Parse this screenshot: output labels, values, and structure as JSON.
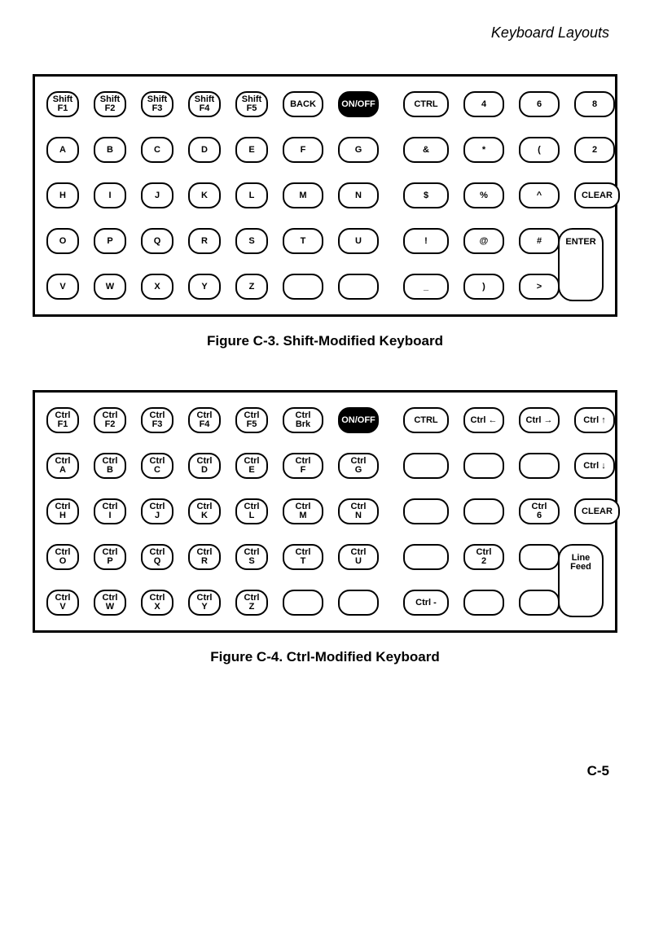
{
  "header": {
    "title": "Keyboard Layouts"
  },
  "figure1": {
    "caption": "Figure C-3.  Shift-Modified Keyboard",
    "rows": [
      {
        "left": [
          {
            "l1": "Shift",
            "l2": "F1",
            "w": "w1"
          },
          {
            "l1": "Shift",
            "l2": "F2",
            "w": "w1"
          },
          {
            "l1": "Shift",
            "l2": "F3",
            "w": "w1"
          },
          {
            "l1": "Shift",
            "l2": "F4",
            "w": "w1"
          },
          {
            "l1": "Shift",
            "l2": "F5",
            "w": "w1"
          },
          {
            "l1": "BACK",
            "w": "w2"
          },
          {
            "l1": "ON/OFF",
            "w": "w2",
            "inv": true
          }
        ],
        "right": [
          {
            "l1": "CTRL",
            "w": "w3"
          },
          {
            "l1": "4",
            "w": "w2"
          },
          {
            "l1": "6",
            "w": "w2"
          },
          {
            "l1": "8",
            "w": "w2"
          }
        ]
      },
      {
        "left": [
          {
            "l1": "A",
            "w": "w1"
          },
          {
            "l1": "B",
            "w": "w1"
          },
          {
            "l1": "C",
            "w": "w1"
          },
          {
            "l1": "D",
            "w": "w1"
          },
          {
            "l1": "E",
            "w": "w1"
          },
          {
            "l1": "F",
            "w": "w2"
          },
          {
            "l1": "G",
            "w": "w2"
          }
        ],
        "right": [
          {
            "l1": "&",
            "w": "w3"
          },
          {
            "l1": "*",
            "w": "w2"
          },
          {
            "l1": "(",
            "w": "w2"
          },
          {
            "l1": "2",
            "w": "w2"
          }
        ]
      },
      {
        "left": [
          {
            "l1": "H",
            "w": "w1"
          },
          {
            "l1": "I",
            "w": "w1"
          },
          {
            "l1": "J",
            "w": "w1"
          },
          {
            "l1": "K",
            "w": "w1"
          },
          {
            "l1": "L",
            "w": "w1"
          },
          {
            "l1": "M",
            "w": "w2"
          },
          {
            "l1": "N",
            "w": "w2"
          }
        ],
        "right": [
          {
            "l1": "$",
            "w": "w3"
          },
          {
            "l1": "%",
            "w": "w2"
          },
          {
            "l1": "^",
            "w": "w2"
          },
          {
            "l1": "CLEAR",
            "w": "w3"
          }
        ]
      },
      {
        "left": [
          {
            "l1": "O",
            "w": "w1"
          },
          {
            "l1": "P",
            "w": "w1"
          },
          {
            "l1": "Q",
            "w": "w1"
          },
          {
            "l1": "R",
            "w": "w1"
          },
          {
            "l1": "S",
            "w": "w1"
          },
          {
            "l1": "T",
            "w": "w2"
          },
          {
            "l1": "U",
            "w": "w2"
          }
        ],
        "right": [
          {
            "l1": "!",
            "w": "w3"
          },
          {
            "l1": "@",
            "w": "w2"
          },
          {
            "l1": "#",
            "w": "w2"
          }
        ],
        "tall": {
          "l1": "ENTER",
          "w": "w3"
        }
      },
      {
        "left": [
          {
            "l1": "V",
            "w": "w1"
          },
          {
            "l1": "W",
            "w": "w1"
          },
          {
            "l1": "X",
            "w": "w1"
          },
          {
            "l1": "Y",
            "w": "w1"
          },
          {
            "l1": "Z",
            "w": "w1"
          },
          {
            "blank": true,
            "w": "w2"
          },
          {
            "blank": true,
            "w": "w2"
          }
        ],
        "right": [
          {
            "l1": "_",
            "w": "w3"
          },
          {
            "l1": ")",
            "w": "w2"
          },
          {
            "l1": ">",
            "w": "w2"
          }
        ]
      }
    ]
  },
  "figure2": {
    "caption": "Figure C-4.  Ctrl-Modified Keyboard",
    "rows": [
      {
        "left": [
          {
            "l1": "Ctrl",
            "l2": "F1",
            "w": "w1"
          },
          {
            "l1": "Ctrl",
            "l2": "F2",
            "w": "w1"
          },
          {
            "l1": "Ctrl",
            "l2": "F3",
            "w": "w1"
          },
          {
            "l1": "Ctrl",
            "l2": "F4",
            "w": "w1"
          },
          {
            "l1": "Ctrl",
            "l2": "F5",
            "w": "w1"
          },
          {
            "l1": "Ctrl",
            "l2": "Brk",
            "w": "w2"
          },
          {
            "l1": "ON/OFF",
            "w": "w2",
            "inv": true
          }
        ],
        "right": [
          {
            "l1": "CTRL",
            "w": "w3"
          },
          {
            "l1": "Ctrl ←",
            "w": "w2"
          },
          {
            "l1": "Ctrl →",
            "w": "w2"
          },
          {
            "l1": "Ctrl ↑",
            "w": "w2"
          }
        ]
      },
      {
        "left": [
          {
            "l1": "Ctrl",
            "l2": "A",
            "w": "w1"
          },
          {
            "l1": "Ctrl",
            "l2": "B",
            "w": "w1"
          },
          {
            "l1": "Ctrl",
            "l2": "C",
            "w": "w1"
          },
          {
            "l1": "Ctrl",
            "l2": "D",
            "w": "w1"
          },
          {
            "l1": "Ctrl",
            "l2": "E",
            "w": "w1"
          },
          {
            "l1": "Ctrl",
            "l2": "F",
            "w": "w2"
          },
          {
            "l1": "Ctrl",
            "l2": "G",
            "w": "w2"
          }
        ],
        "right": [
          {
            "blank": true,
            "w": "w3"
          },
          {
            "blank": true,
            "w": "w2"
          },
          {
            "blank": true,
            "w": "w2"
          },
          {
            "l1": "Ctrl ↓",
            "w": "w2"
          }
        ]
      },
      {
        "left": [
          {
            "l1": "Ctrl",
            "l2": "H",
            "w": "w1"
          },
          {
            "l1": "Ctrl",
            "l2": "I",
            "w": "w1"
          },
          {
            "l1": "Ctrl",
            "l2": "J",
            "w": "w1"
          },
          {
            "l1": "Ctrl",
            "l2": "K",
            "w": "w1"
          },
          {
            "l1": "Ctrl",
            "l2": "L",
            "w": "w1"
          },
          {
            "l1": "Ctrl",
            "l2": "M",
            "w": "w2"
          },
          {
            "l1": "Ctrl",
            "l2": "N",
            "w": "w2"
          }
        ],
        "right": [
          {
            "blank": true,
            "w": "w3"
          },
          {
            "blank": true,
            "w": "w2"
          },
          {
            "l1": "Ctrl",
            "l2": "6",
            "w": "w2"
          },
          {
            "l1": "CLEAR",
            "w": "w3"
          }
        ]
      },
      {
        "left": [
          {
            "l1": "Ctrl",
            "l2": "O",
            "w": "w1"
          },
          {
            "l1": "Ctrl",
            "l2": "P",
            "w": "w1"
          },
          {
            "l1": "Ctrl",
            "l2": "Q",
            "w": "w1"
          },
          {
            "l1": "Ctrl",
            "l2": "R",
            "w": "w1"
          },
          {
            "l1": "Ctrl",
            "l2": "S",
            "w": "w1"
          },
          {
            "l1": "Ctrl",
            "l2": "T",
            "w": "w2"
          },
          {
            "l1": "Ctrl",
            "l2": "U",
            "w": "w2"
          }
        ],
        "right": [
          {
            "blank": true,
            "w": "w3"
          },
          {
            "l1": "Ctrl",
            "l2": "2",
            "w": "w2"
          },
          {
            "blank": true,
            "w": "w2"
          }
        ],
        "tall": {
          "l1": "Line",
          "l2": "Feed",
          "w": "w3"
        }
      },
      {
        "left": [
          {
            "l1": "Ctrl",
            "l2": "V",
            "w": "w1"
          },
          {
            "l1": "Ctrl",
            "l2": "W",
            "w": "w1"
          },
          {
            "l1": "Ctrl",
            "l2": "X",
            "w": "w1"
          },
          {
            "l1": "Ctrl",
            "l2": "Y",
            "w": "w1"
          },
          {
            "l1": "Ctrl",
            "l2": "Z",
            "w": "w1"
          },
          {
            "blank": true,
            "w": "w2"
          },
          {
            "blank": true,
            "w": "w2"
          }
        ],
        "right": [
          {
            "l1": "Ctrl -",
            "w": "w3"
          },
          {
            "blank": true,
            "w": "w2"
          },
          {
            "blank": true,
            "w": "w2"
          }
        ]
      }
    ]
  },
  "page_number": "C-5"
}
